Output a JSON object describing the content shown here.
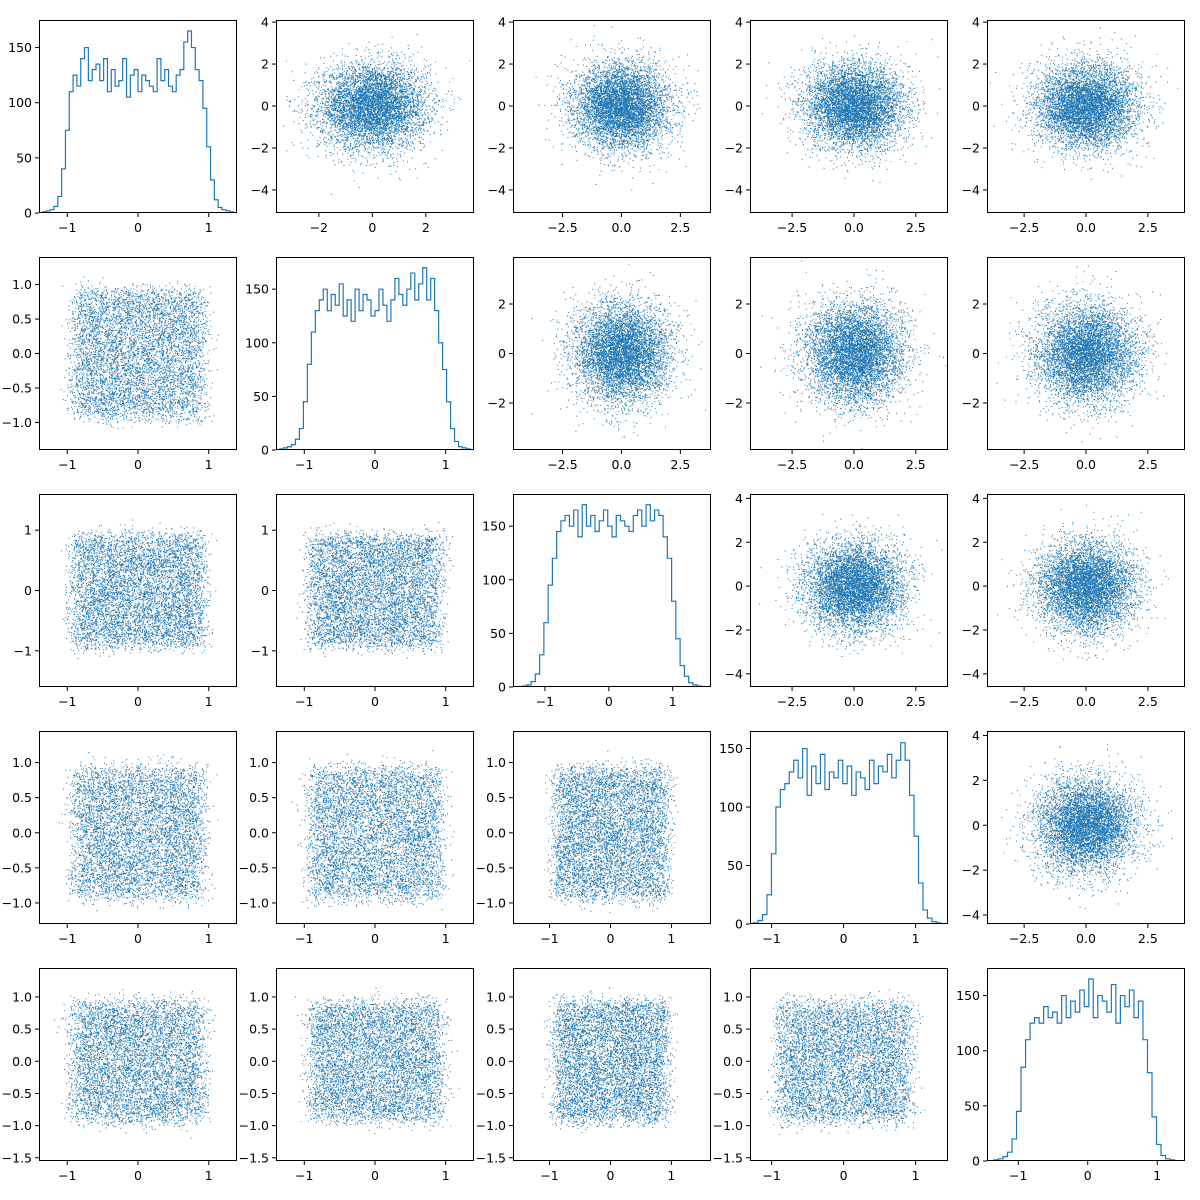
{
  "figure": {
    "color": "#1f77b4",
    "layout": "5x5 scatter matrix; histograms on the diagonal, scatter plots off the diagonal"
  },
  "chart_data": [
    {
      "type": "histogram",
      "row": 0,
      "col": 0,
      "xlim": [
        -1.4,
        1.4
      ],
      "ylim": [
        0,
        175
      ],
      "xticks": [
        -1,
        0,
        1
      ],
      "yticks": [
        0,
        50,
        100,
        150
      ],
      "bin_counts": [
        1,
        2,
        3,
        6,
        15,
        40,
        75,
        110,
        125,
        115,
        140,
        150,
        120,
        130,
        135,
        120,
        140,
        110,
        130,
        115,
        120,
        140,
        105,
        125,
        130,
        110,
        125,
        120,
        115,
        110,
        140,
        120,
        130,
        115,
        110,
        125,
        130,
        155,
        165,
        150,
        130,
        120,
        95,
        60,
        30,
        12,
        5,
        3,
        2,
        1
      ],
      "bin_range": [
        -1.35,
        1.35
      ]
    },
    {
      "type": "scatter",
      "row": 0,
      "col": 1,
      "xlim": [
        -3.6,
        3.8
      ],
      "ylim": [
        -5.1,
        4.1
      ],
      "xticks": [
        -2,
        0,
        2
      ],
      "yticks": [
        -4,
        -2,
        0,
        2,
        4
      ],
      "x_dist": "normal",
      "y_dist": "normal"
    },
    {
      "type": "scatter",
      "row": 0,
      "col": 2,
      "xlim": [
        -4.6,
        3.8
      ],
      "ylim": [
        -5.1,
        4.1
      ],
      "xticks": [
        -2.5,
        0.0,
        2.5
      ],
      "yticks": [
        -4,
        -2,
        0,
        2,
        4
      ],
      "x_dist": "normal",
      "y_dist": "normal"
    },
    {
      "type": "scatter",
      "row": 0,
      "col": 3,
      "xlim": [
        -4.2,
        3.8
      ],
      "ylim": [
        -5.1,
        4.1
      ],
      "xticks": [
        -2.5,
        0.0,
        2.5
      ],
      "yticks": [
        -4,
        -2,
        0,
        2,
        4
      ],
      "x_dist": "normal",
      "y_dist": "normal"
    },
    {
      "type": "scatter",
      "row": 0,
      "col": 4,
      "xlim": [
        -4.0,
        4.0
      ],
      "ylim": [
        -5.1,
        4.1
      ],
      "xticks": [
        -2.5,
        0.0,
        2.5
      ],
      "yticks": [
        -4,
        -2,
        0,
        2,
        4
      ],
      "x_dist": "normal",
      "y_dist": "normal"
    },
    {
      "type": "scatter",
      "row": 1,
      "col": 0,
      "xlim": [
        -1.4,
        1.4
      ],
      "ylim": [
        -1.4,
        1.4
      ],
      "xticks": [
        -1,
        0,
        1
      ],
      "yticks": [
        -1.0,
        -0.5,
        0.0,
        0.5,
        1.0
      ],
      "x_dist": "uniform",
      "y_dist": "uniform"
    },
    {
      "type": "histogram",
      "row": 1,
      "col": 1,
      "xlim": [
        -1.4,
        1.4
      ],
      "ylim": [
        0,
        180
      ],
      "xticks": [
        -1,
        0,
        1
      ],
      "yticks": [
        0,
        50,
        100,
        150
      ],
      "bin_counts": [
        1,
        2,
        3,
        5,
        10,
        20,
        45,
        80,
        110,
        130,
        140,
        150,
        130,
        145,
        135,
        155,
        125,
        140,
        120,
        150,
        130,
        145,
        140,
        125,
        130,
        150,
        135,
        120,
        140,
        160,
        145,
        135,
        150,
        165,
        140,
        155,
        170,
        140,
        160,
        130,
        100,
        75,
        45,
        20,
        8,
        3,
        2,
        1
      ],
      "bin_range": [
        -1.35,
        1.35
      ]
    },
    {
      "type": "scatter",
      "row": 1,
      "col": 2,
      "xlim": [
        -4.6,
        3.8
      ],
      "ylim": [
        -3.9,
        3.9
      ],
      "xticks": [
        -2.5,
        0.0,
        2.5
      ],
      "yticks": [
        -2,
        0,
        2
      ],
      "x_dist": "normal",
      "y_dist": "normal"
    },
    {
      "type": "scatter",
      "row": 1,
      "col": 3,
      "xlim": [
        -4.2,
        3.8
      ],
      "ylim": [
        -3.9,
        3.9
      ],
      "xticks": [
        -2.5,
        0.0,
        2.5
      ],
      "yticks": [
        -2,
        0,
        2
      ],
      "x_dist": "normal",
      "y_dist": "normal"
    },
    {
      "type": "scatter",
      "row": 1,
      "col": 4,
      "xlim": [
        -4.0,
        4.0
      ],
      "ylim": [
        -3.9,
        3.9
      ],
      "xticks": [
        -2.5,
        0.0,
        2.5
      ],
      "yticks": [
        -2,
        0,
        2
      ],
      "x_dist": "normal",
      "y_dist": "normal"
    },
    {
      "type": "scatter",
      "row": 2,
      "col": 0,
      "xlim": [
        -1.4,
        1.4
      ],
      "ylim": [
        -1.6,
        1.6
      ],
      "xticks": [
        -1,
        0,
        1
      ],
      "yticks": [
        -1,
        0,
        1
      ],
      "x_dist": "uniform",
      "y_dist": "uniform"
    },
    {
      "type": "scatter",
      "row": 2,
      "col": 1,
      "xlim": [
        -1.4,
        1.4
      ],
      "ylim": [
        -1.6,
        1.6
      ],
      "xticks": [
        -1,
        0,
        1
      ],
      "yticks": [
        -1,
        0,
        1
      ],
      "x_dist": "uniform",
      "y_dist": "uniform"
    },
    {
      "type": "histogram",
      "row": 2,
      "col": 2,
      "xlim": [
        -1.5,
        1.6
      ],
      "ylim": [
        0,
        180
      ],
      "xticks": [
        -1,
        0,
        1
      ],
      "yticks": [
        0,
        50,
        100,
        150
      ],
      "bin_counts": [
        1,
        2,
        5,
        12,
        30,
        60,
        95,
        120,
        145,
        155,
        160,
        150,
        165,
        140,
        170,
        150,
        160,
        145,
        155,
        165,
        150,
        140,
        160,
        155,
        150,
        145,
        160,
        165,
        150,
        170,
        155,
        165,
        160,
        140,
        120,
        80,
        45,
        20,
        10,
        4,
        2,
        1
      ],
      "bin_range": [
        -1.35,
        1.45
      ]
    },
    {
      "type": "scatter",
      "row": 2,
      "col": 3,
      "xlim": [
        -4.2,
        3.8
      ],
      "ylim": [
        -4.6,
        4.2
      ],
      "xticks": [
        -2.5,
        0.0,
        2.5
      ],
      "yticks": [
        -4,
        -2,
        0,
        2,
        4
      ],
      "x_dist": "normal",
      "y_dist": "normal"
    },
    {
      "type": "scatter",
      "row": 2,
      "col": 4,
      "xlim": [
        -4.0,
        4.0
      ],
      "ylim": [
        -4.6,
        4.2
      ],
      "xticks": [
        -2.5,
        0.0,
        2.5
      ],
      "yticks": [
        -4,
        -2,
        0,
        2,
        4
      ],
      "x_dist": "normal",
      "y_dist": "normal"
    },
    {
      "type": "scatter",
      "row": 3,
      "col": 0,
      "xlim": [
        -1.4,
        1.4
      ],
      "ylim": [
        -1.3,
        1.45
      ],
      "xticks": [
        -1,
        0,
        1
      ],
      "yticks": [
        -1.0,
        -0.5,
        0.0,
        0.5,
        1.0
      ],
      "x_dist": "uniform",
      "y_dist": "uniform"
    },
    {
      "type": "scatter",
      "row": 3,
      "col": 1,
      "xlim": [
        -1.4,
        1.4
      ],
      "ylim": [
        -1.3,
        1.45
      ],
      "xticks": [
        -1,
        0,
        1
      ],
      "yticks": [
        -1.0,
        -0.5,
        0.0,
        0.5,
        1.0
      ],
      "x_dist": "uniform",
      "y_dist": "uniform"
    },
    {
      "type": "scatter",
      "row": 3,
      "col": 2,
      "xlim": [
        -1.6,
        1.65
      ],
      "ylim": [
        -1.3,
        1.45
      ],
      "xticks": [
        -1,
        0,
        1
      ],
      "yticks": [
        -1.0,
        -0.5,
        0.0,
        0.5,
        1.0
      ],
      "x_dist": "uniform",
      "y_dist": "uniform"
    },
    {
      "type": "histogram",
      "row": 3,
      "col": 3,
      "xlim": [
        -1.3,
        1.45
      ],
      "ylim": [
        0,
        165
      ],
      "xticks": [
        -1,
        0,
        1
      ],
      "yticks": [
        0,
        50,
        100,
        150
      ],
      "bin_counts": [
        1,
        3,
        8,
        25,
        60,
        100,
        115,
        120,
        130,
        140,
        125,
        150,
        110,
        135,
        120,
        145,
        115,
        130,
        125,
        140,
        120,
        135,
        110,
        130,
        125,
        115,
        140,
        120,
        135,
        130,
        145,
        125,
        140,
        155,
        140,
        110,
        75,
        35,
        12,
        5,
        2,
        1
      ],
      "bin_range": [
        -1.25,
        1.35
      ]
    },
    {
      "type": "scatter",
      "row": 3,
      "col": 4,
      "xlim": [
        -4.0,
        4.0
      ],
      "ylim": [
        -4.4,
        4.2
      ],
      "xticks": [
        -2.5,
        0.0,
        2.5
      ],
      "yticks": [
        -4,
        -2,
        0,
        2,
        4
      ],
      "x_dist": "normal",
      "y_dist": "normal"
    },
    {
      "type": "scatter",
      "row": 4,
      "col": 0,
      "xlim": [
        -1.4,
        1.4
      ],
      "ylim": [
        -1.55,
        1.45
      ],
      "xticks": [
        -1,
        0,
        1
      ],
      "yticks": [
        -1.5,
        -1.0,
        -0.5,
        0.0,
        0.5,
        1.0
      ],
      "x_dist": "uniform",
      "y_dist": "uniform"
    },
    {
      "type": "scatter",
      "row": 4,
      "col": 1,
      "xlim": [
        -1.4,
        1.4
      ],
      "ylim": [
        -1.55,
        1.45
      ],
      "xticks": [
        -1,
        0,
        1
      ],
      "yticks": [
        -1.5,
        -1.0,
        -0.5,
        0.0,
        0.5,
        1.0
      ],
      "x_dist": "uniform",
      "y_dist": "uniform"
    },
    {
      "type": "scatter",
      "row": 4,
      "col": 2,
      "xlim": [
        -1.6,
        1.65
      ],
      "ylim": [
        -1.55,
        1.45
      ],
      "xticks": [
        -1,
        0,
        1
      ],
      "yticks": [
        -1.5,
        -1.0,
        -0.5,
        0.0,
        0.5,
        1.0
      ],
      "x_dist": "uniform",
      "y_dist": "uniform"
    },
    {
      "type": "scatter",
      "row": 4,
      "col": 3,
      "xlim": [
        -1.3,
        1.45
      ],
      "ylim": [
        -1.55,
        1.45
      ],
      "xticks": [
        -1,
        0,
        1
      ],
      "yticks": [
        -1.5,
        -1.0,
        -0.5,
        0.0,
        0.5,
        1.0
      ],
      "x_dist": "uniform",
      "y_dist": "uniform"
    },
    {
      "type": "histogram",
      "row": 4,
      "col": 4,
      "xlim": [
        -1.45,
        1.4
      ],
      "ylim": [
        0,
        175
      ],
      "xticks": [
        -1,
        0,
        1
      ],
      "yticks": [
        0,
        50,
        100,
        150
      ],
      "bin_counts": [
        1,
        2,
        4,
        8,
        20,
        45,
        85,
        110,
        125,
        130,
        125,
        140,
        130,
        135,
        125,
        150,
        130,
        145,
        135,
        155,
        140,
        165,
        130,
        150,
        145,
        135,
        160,
        125,
        150,
        140,
        155,
        130,
        145,
        110,
        80,
        40,
        15,
        5,
        2,
        1
      ],
      "bin_range": [
        -1.35,
        1.25
      ]
    }
  ]
}
